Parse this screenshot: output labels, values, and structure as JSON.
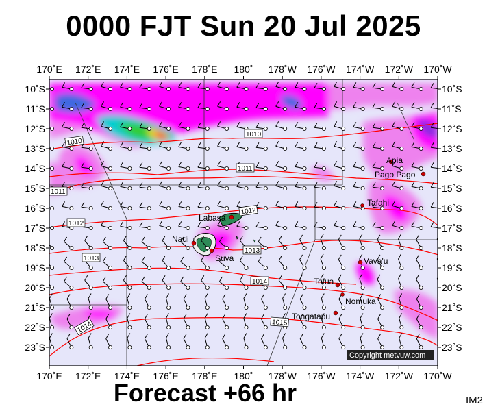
{
  "title": "0000 FJT Sun 20 Jul 2025",
  "footer": "Forecast +66 hr",
  "image_code": "IM2",
  "copyright": "Copyright metvuw.com",
  "colors": {
    "ocean": "#e6e6fa",
    "isobar": "#ff0000",
    "land": "#2e8b57",
    "rain_light": "#ee82ee",
    "rain_medium": "#ff00ff",
    "rain_heavy": "#0000ff",
    "rain_extreme": "#ff0000",
    "city": "#cc0000"
  },
  "map": {
    "lon_labels": [
      "170˚E",
      "172˚E",
      "174˚E",
      "176˚E",
      "178˚E",
      "180˚",
      "178˚W",
      "176˚W",
      "174˚W",
      "172˚W",
      "170˚W"
    ],
    "lat_labels": [
      "10˚S",
      "11˚S",
      "12˚S",
      "13˚S",
      "14˚S",
      "15˚S",
      "16˚S",
      "17˚S",
      "18˚S",
      "19˚S",
      "20˚S",
      "21˚S",
      "22˚S",
      "23˚S"
    ],
    "places": [
      {
        "name": "Apia",
        "lon": -171.8,
        "lat": -13.8
      },
      {
        "name": "Pago Pago",
        "lon": -170.7,
        "lat": -14.3
      },
      {
        "name": "Tafahi",
        "lon": -173.7,
        "lat": -15.9
      },
      {
        "name": "Labasa",
        "lon": 179.4,
        "lat": -16.4
      },
      {
        "name": "Nadi",
        "lon": 177.4,
        "lat": -17.8
      },
      {
        "name": "Suva",
        "lon": 178.4,
        "lat": -18.1
      },
      {
        "name": "Vava'u",
        "lon": -174.0,
        "lat": -18.6
      },
      {
        "name": "Tofua",
        "lon": -175.1,
        "lat": -19.7
      },
      {
        "name": "Nomuka",
        "lon": -174.8,
        "lat": -20.3
      },
      {
        "name": "Tongatapu",
        "lon": -175.2,
        "lat": -21.1
      }
    ],
    "isobar_labels": [
      "1010",
      "1010",
      "1011",
      "1011",
      "1012",
      "1012",
      "1013",
      "1013",
      "1014",
      "1014",
      "1015"
    ],
    "isobar_values": [
      1010,
      1011,
      1012,
      1013,
      1014,
      1015
    ]
  }
}
